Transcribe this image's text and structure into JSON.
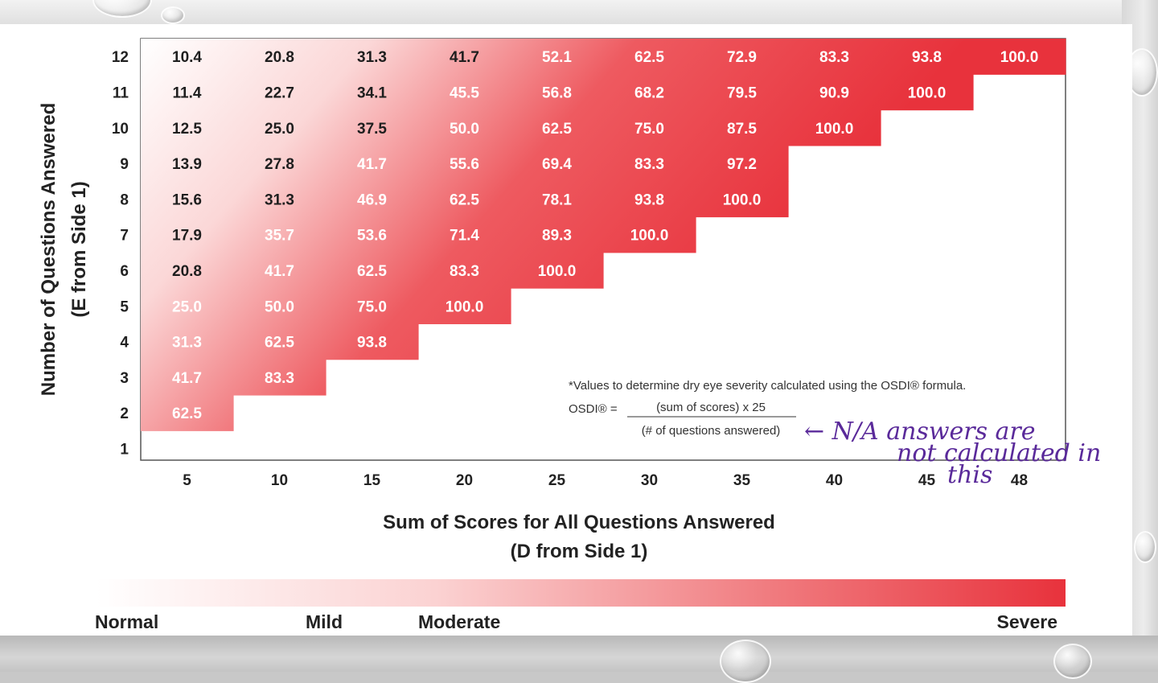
{
  "chart_data": {
    "type": "heatmap",
    "xlabel": [
      "Sum of Scores for All Questions Answered",
      "(D from Side 1)"
    ],
    "ylabel": [
      "Number of Questions Answered",
      "(E from Side 1)"
    ],
    "x_ticks": [
      "5",
      "10",
      "15",
      "20",
      "25",
      "30",
      "35",
      "40",
      "45",
      "48"
    ],
    "y_ticks": [
      "12",
      "11",
      "10",
      "9",
      "8",
      "7",
      "6",
      "5",
      "4",
      "3",
      "2",
      "1"
    ],
    "rows": [
      {
        "questions": 12,
        "values": [
          "10.4",
          "20.8",
          "31.3",
          "41.7",
          "52.1",
          "62.5",
          "72.9",
          "83.3",
          "93.8",
          "100.0"
        ]
      },
      {
        "questions": 11,
        "values": [
          "11.4",
          "22.7",
          "34.1",
          "45.5",
          "56.8",
          "68.2",
          "79.5",
          "90.9",
          "100.0"
        ]
      },
      {
        "questions": 10,
        "values": [
          "12.5",
          "25.0",
          "37.5",
          "50.0",
          "62.5",
          "75.0",
          "87.5",
          "100.0"
        ]
      },
      {
        "questions": 9,
        "values": [
          "13.9",
          "27.8",
          "41.7",
          "55.6",
          "69.4",
          "83.3",
          "97.2"
        ]
      },
      {
        "questions": 8,
        "values": [
          "15.6",
          "31.3",
          "46.9",
          "62.5",
          "78.1",
          "93.8",
          "100.0"
        ]
      },
      {
        "questions": 7,
        "values": [
          "17.9",
          "35.7",
          "53.6",
          "71.4",
          "89.3",
          "100.0"
        ]
      },
      {
        "questions": 6,
        "values": [
          "20.8",
          "41.7",
          "62.5",
          "83.3",
          "100.0"
        ]
      },
      {
        "questions": 5,
        "values": [
          "25.0",
          "50.0",
          "75.0",
          "100.0"
        ]
      },
      {
        "questions": 4,
        "values": [
          "31.3",
          "62.5",
          "93.8"
        ]
      },
      {
        "questions": 3,
        "values": [
          "41.7",
          "83.3"
        ]
      },
      {
        "questions": 2,
        "values": [
          "62.5"
        ]
      },
      {
        "questions": 1,
        "values": []
      }
    ],
    "color_scale": {
      "low": "#ffffff",
      "high": "#e8323c",
      "labels": [
        "Normal",
        "Mild",
        "Moderate",
        "Severe"
      ]
    },
    "footnote": "*Values to determine dry eye severity calculated using the OSDI® formula.",
    "formula": {
      "lhs": "OSDI® =",
      "numerator": "(sum of scores) x 25",
      "denominator": "(# of questions answered)"
    },
    "handwritten_note": [
      "← N/A answers are",
      "not calculated in",
      "this"
    ]
  }
}
